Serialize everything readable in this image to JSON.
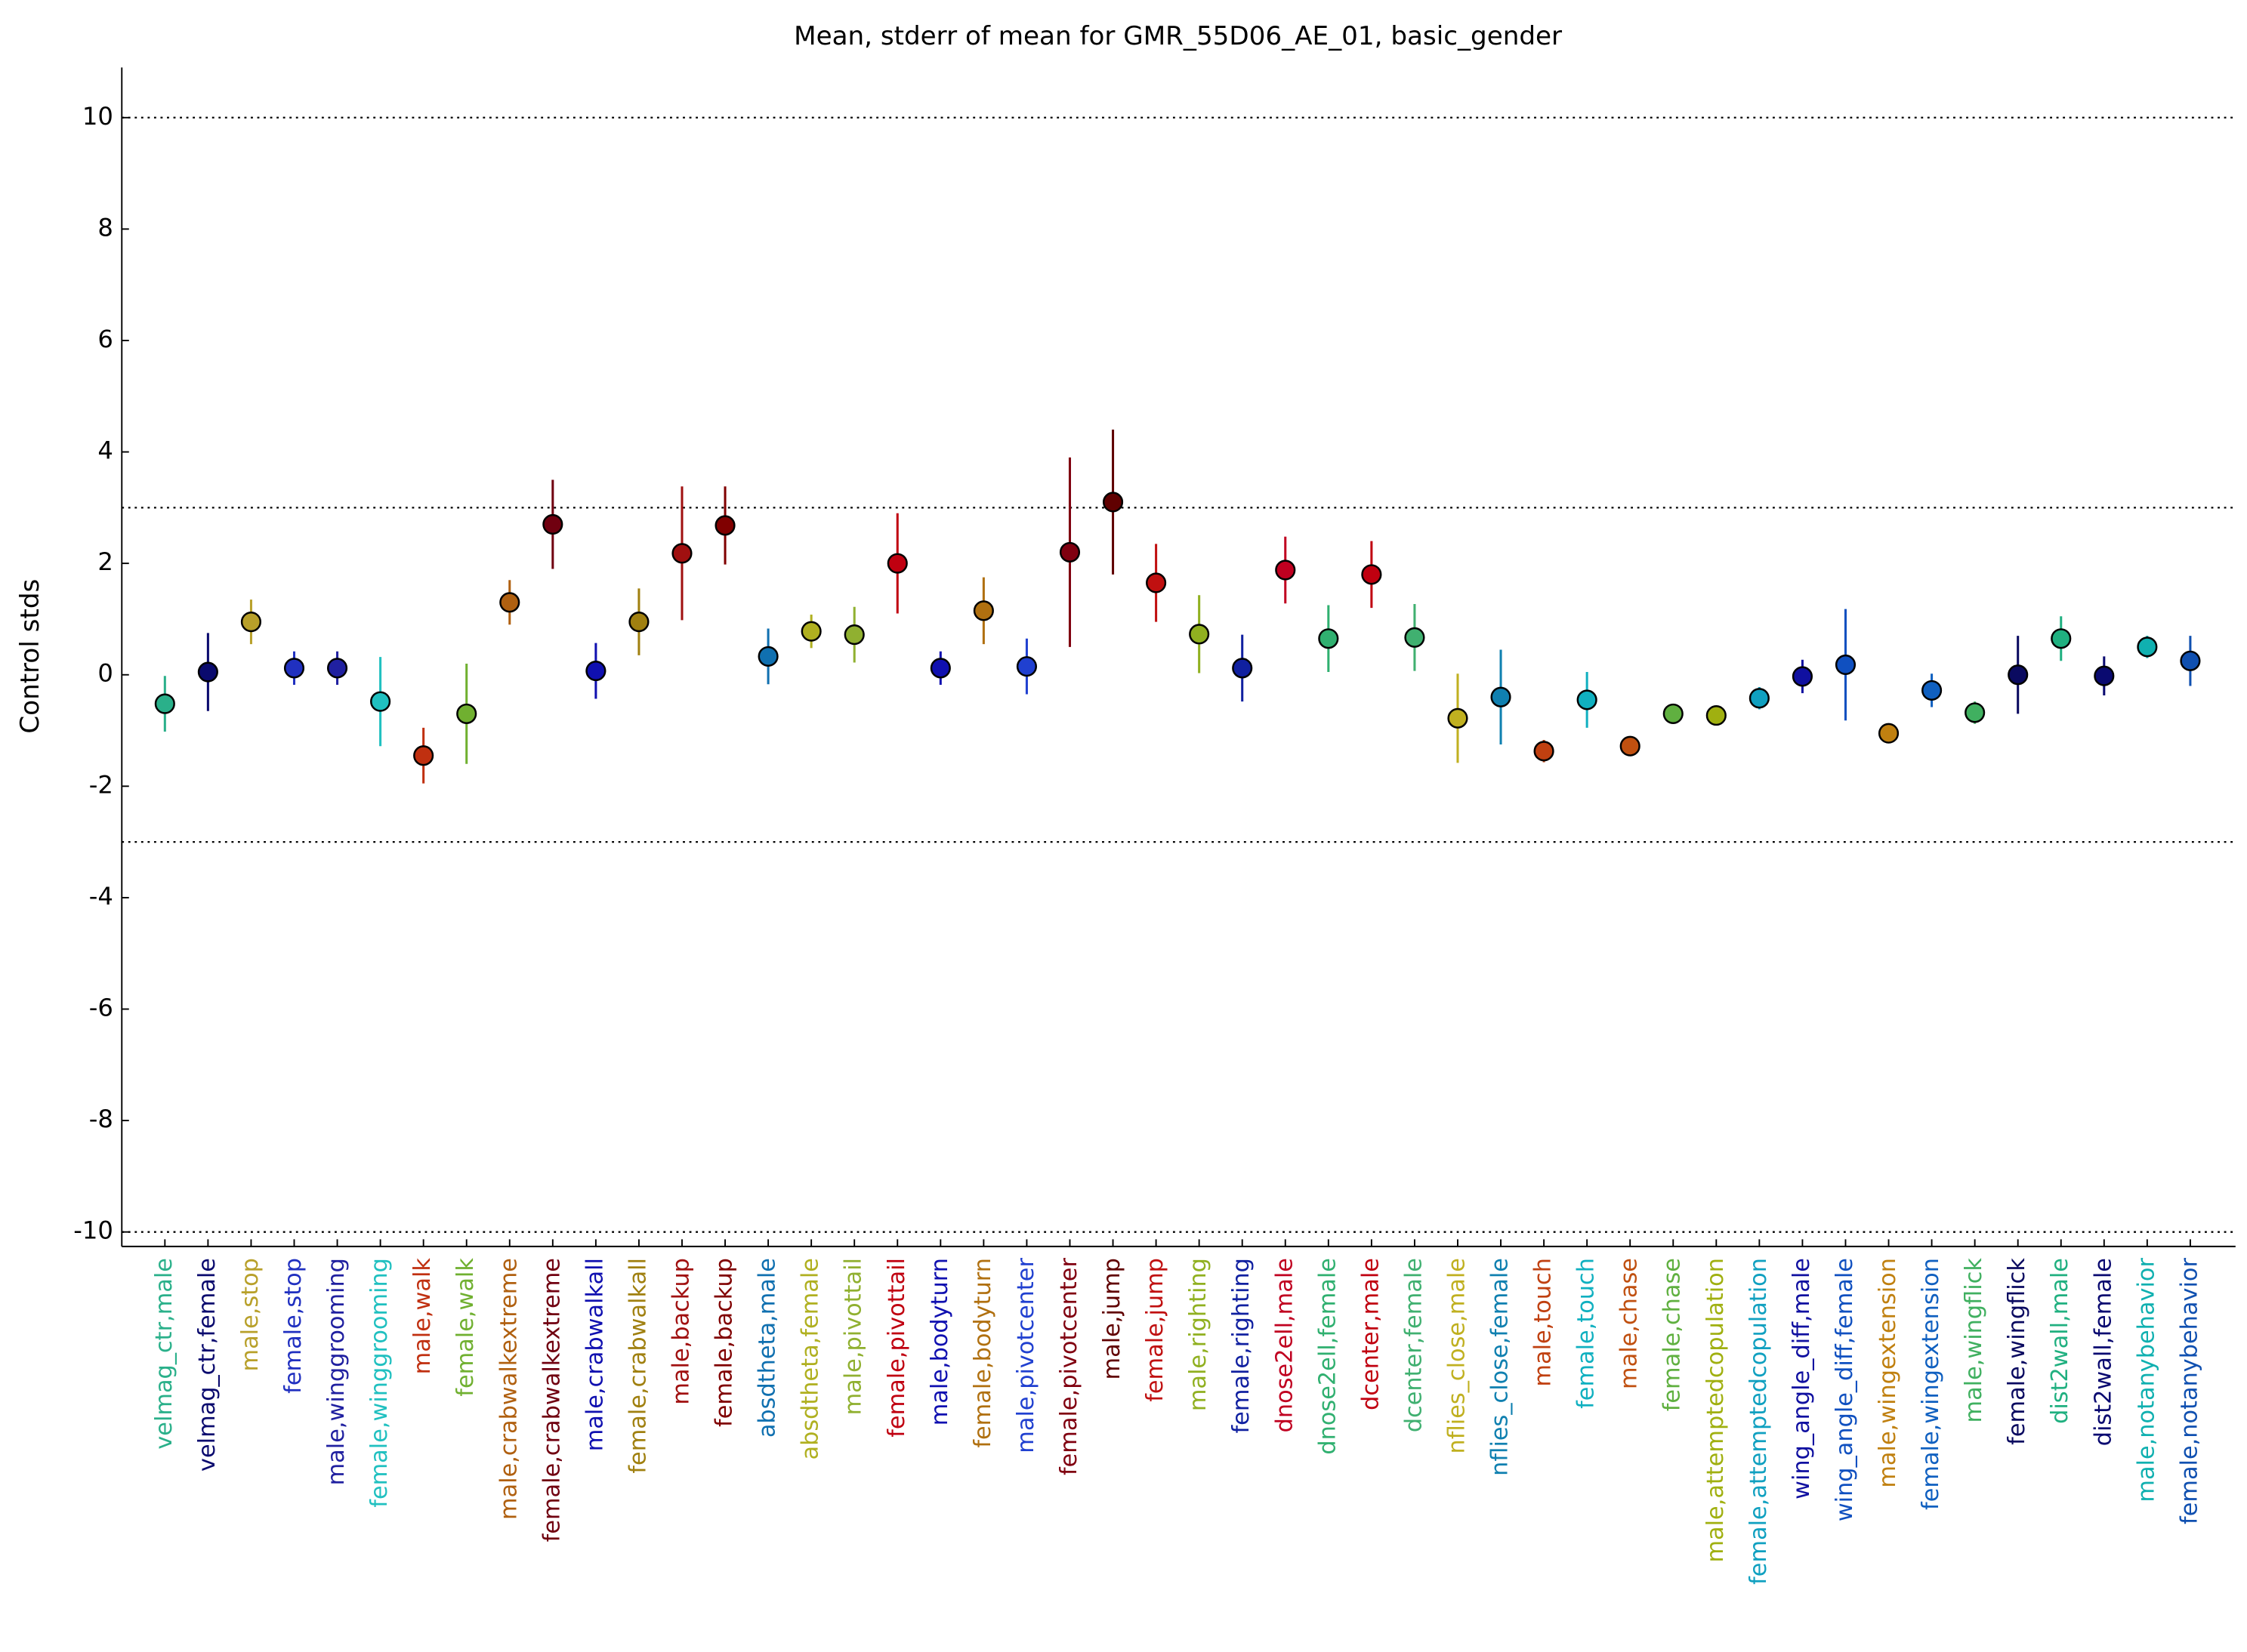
{
  "chart_data": {
    "type": "errorbar",
    "title": "Mean, stderr of mean for GMR_55D06_AE_01, basic_gender",
    "y_label": "Control stds",
    "categories": [
      "velmag_ctr,male",
      "velmag_ctr,female",
      "male,stop",
      "female,stop",
      "male,winggrooming",
      "female,winggrooming",
      "male,walk",
      "female,walk",
      "male,crabwalkextreme",
      "female,crabwalkextreme",
      "male,crabwalkall",
      "female,crabwalkall",
      "male,backup",
      "female,backup",
      "absdtheta,male",
      "absdtheta,female",
      "male,pivottail",
      "female,pivottail",
      "male,bodyturn",
      "female,bodyturn",
      "male,pivotcenter",
      "female,pivotcenter",
      "male,jump",
      "female,jump",
      "male,righting",
      "female,righting",
      "dnose2ell,male",
      "dnose2ell,female",
      "dcenter,male",
      "dcenter,female",
      "nflies_close,male",
      "nflies_close,female",
      "male,touch",
      "female,touch",
      "male,chase",
      "female,chase",
      "male,attemptedcopulation",
      "female,attemptedcopulation",
      "wing_angle_diff,male",
      "wing_angle_diff,female",
      "male,wingextension",
      "female,wingextension",
      "male,wingflick",
      "female,wingflick",
      "dist2wall,male",
      "dist2wall,female",
      "male,notanybehavior",
      "female,notanybehavior"
    ],
    "values": [
      -0.52,
      0.05,
      0.95,
      0.12,
      0.12,
      -0.48,
      -1.45,
      -0.7,
      1.3,
      2.7,
      0.07,
      0.95,
      2.18,
      2.68,
      0.33,
      0.78,
      0.72,
      2.0,
      0.12,
      1.15,
      0.15,
      2.2,
      3.1,
      1.65,
      0.73,
      0.12,
      1.88,
      0.65,
      1.8,
      0.67,
      -0.78,
      -0.4,
      -1.37,
      -0.45,
      -1.28,
      -0.7,
      -0.73,
      -0.42,
      -0.03,
      0.18,
      -1.05,
      -0.28,
      -0.68,
      0.0,
      0.65,
      -0.02,
      0.5,
      0.25
    ],
    "errors": [
      0.5,
      0.7,
      0.4,
      0.3,
      0.3,
      0.8,
      0.5,
      0.9,
      0.4,
      0.8,
      0.5,
      0.6,
      1.2,
      0.7,
      0.5,
      0.3,
      0.5,
      0.9,
      0.3,
      0.6,
      0.5,
      1.7,
      1.3,
      0.7,
      0.7,
      0.6,
      0.6,
      0.6,
      0.6,
      0.6,
      0.8,
      0.85,
      0.2,
      0.5,
      0.15,
      0.1,
      0.1,
      0.2,
      0.3,
      1.0,
      0.15,
      0.3,
      0.2,
      0.7,
      0.4,
      0.35,
      0.2,
      0.45
    ],
    "colors": [
      "#2ab08a",
      "#0a0a6e",
      "#b8a02a",
      "#2030c0",
      "#2020a0",
      "#20c0c0",
      "#c03010",
      "#70b030",
      "#b06010",
      "#700010",
      "#1010b0",
      "#a08010",
      "#a01010",
      "#800000",
      "#1070b0",
      "#b0b020",
      "#90b030",
      "#c00010",
      "#1010b0",
      "#b07010",
      "#2040d0",
      "#800010",
      "#600000",
      "#c01010",
      "#90b020",
      "#1020a0",
      "#c00020",
      "#30b070",
      "#c00010",
      "#40b070",
      "#c0b020",
      "#1080b0",
      "#c04010",
      "#10b0c0",
      "#c05010",
      "#60b040",
      "#a0b010",
      "#10a0c0",
      "#1010a0",
      "#1050c0",
      "#c08010",
      "#1060c0",
      "#40b060",
      "#0a0a60",
      "#20b080",
      "#0a0a70",
      "#10b0b0",
      "#1050b0"
    ],
    "ylim": [
      -10.26,
      10.9
    ],
    "yticks": [
      -10,
      -8,
      -6,
      -4,
      -2,
      0,
      2,
      4,
      6,
      8,
      10
    ],
    "hlines": [
      -10,
      -3,
      3,
      10
    ]
  }
}
